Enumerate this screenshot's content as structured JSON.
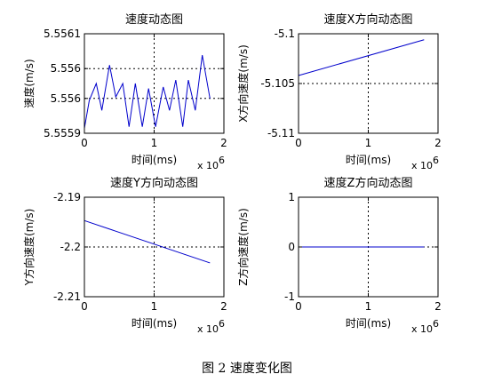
{
  "caption": "图 2  速度变化图",
  "chart_data": [
    {
      "type": "line",
      "title": "速度动态图",
      "xlabel": "时间(ms)",
      "ylabel": "速度(m/s)",
      "x_exponent_label": "x 10",
      "x_exponent_power": "6",
      "xlim": [
        0,
        2
      ],
      "ylim": [
        5.5559,
        5.5561
      ],
      "xticks": [
        0,
        1,
        2
      ],
      "xtick_labels": [
        "0",
        "1",
        "2"
      ],
      "yticks": [
        5.5559,
        5.55597,
        5.55603,
        5.5561
      ],
      "ytick_labels": [
        "5.5559",
        "5.556",
        "5.556",
        "5.5561"
      ],
      "grid": true,
      "series": [
        {
          "color": "#0000cc",
          "x": [
            0,
            0.07,
            0.17,
            0.25,
            0.36,
            0.45,
            0.55,
            0.64,
            0.73,
            0.83,
            0.92,
            1.02,
            1.13,
            1.22,
            1.31,
            1.41,
            1.49,
            1.59,
            1.69,
            1.8
          ],
          "y": [
            5.55591,
            5.555966,
            5.556,
            5.555946,
            5.556037,
            5.555973,
            5.556,
            5.555913,
            5.556,
            5.555913,
            5.55599,
            5.555913,
            5.555993,
            5.555946,
            5.556007,
            5.555913,
            5.556007,
            5.555946,
            5.556057,
            5.55597
          ]
        }
      ]
    },
    {
      "type": "line",
      "title": "速度X方向动态图",
      "xlabel": "时间(ms)",
      "ylabel": "X方向速度(m/s)",
      "x_exponent_label": "x 10",
      "x_exponent_power": "6",
      "xlim": [
        0,
        2
      ],
      "ylim": [
        -5.11,
        -5.1
      ],
      "xticks": [
        0,
        1,
        2
      ],
      "xtick_labels": [
        "0",
        "1",
        "2"
      ],
      "yticks": [
        -5.11,
        -5.105,
        -5.1
      ],
      "ytick_labels": [
        "-5.11",
        "-5.105",
        "-5.1"
      ],
      "grid": true,
      "series": [
        {
          "color": "#0000cc",
          "x": [
            0,
            1.8
          ],
          "y": [
            -5.1042,
            -5.1006
          ]
        }
      ]
    },
    {
      "type": "line",
      "title": "速度Y方向动态图",
      "xlabel": "时间(ms)",
      "ylabel": "Y方向速度(m/s)",
      "x_exponent_label": "x 10",
      "x_exponent_power": "6",
      "xlim": [
        0,
        2
      ],
      "ylim": [
        -2.21,
        -2.19
      ],
      "xticks": [
        0,
        1,
        2
      ],
      "xtick_labels": [
        "0",
        "1",
        "2"
      ],
      "yticks": [
        -2.21,
        -2.2,
        -2.19
      ],
      "ytick_labels": [
        "-2.21",
        "-2.2",
        "-2.19"
      ],
      "grid": true,
      "series": [
        {
          "color": "#0000cc",
          "x": [
            0,
            1.8
          ],
          "y": [
            -2.1947,
            -2.2032
          ]
        }
      ]
    },
    {
      "type": "line",
      "title": "速度Z方向动态图",
      "xlabel": "时间(ms)",
      "ylabel": "Z方向速度(m/s)",
      "x_exponent_label": "x 10",
      "x_exponent_power": "6",
      "xlim": [
        0,
        2
      ],
      "ylim": [
        -1,
        1
      ],
      "xticks": [
        0,
        1,
        2
      ],
      "xtick_labels": [
        "0",
        "1",
        "2"
      ],
      "yticks": [
        -1,
        0,
        1
      ],
      "ytick_labels": [
        "-1",
        "0",
        "1"
      ],
      "grid": true,
      "series": [
        {
          "color": "#0000cc",
          "x": [
            0,
            1.8
          ],
          "y": [
            0,
            0
          ]
        }
      ]
    }
  ]
}
